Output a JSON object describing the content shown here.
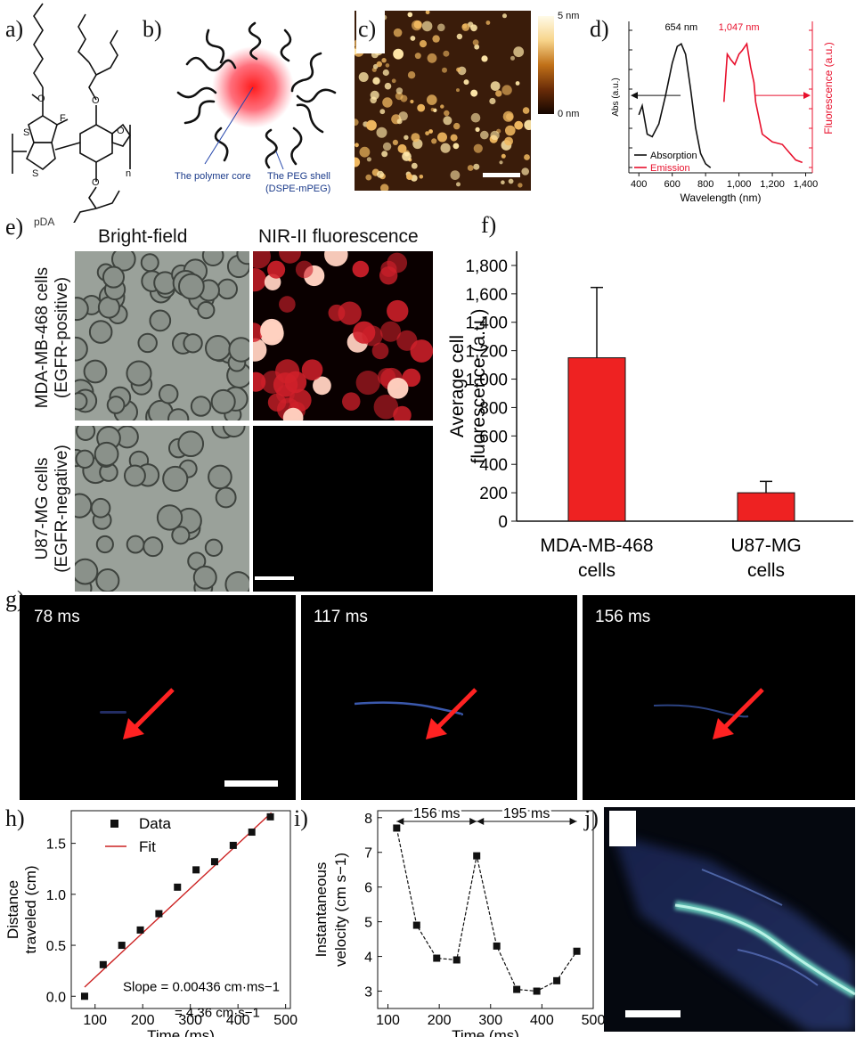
{
  "panels": {
    "a": {
      "label": "a)",
      "molecule_name": "pDA",
      "atoms": {
        "O": "O",
        "S": "S",
        "F": "F",
        "n": "n"
      }
    },
    "b": {
      "label": "b)",
      "core_label": "The polymer core",
      "shell_label_1": "The PEG shell",
      "shell_label_2": "(DSPE-mPEG)"
    },
    "c": {
      "label": "c)",
      "colorbar_max": "5 nm",
      "colorbar_min": "0 nm"
    },
    "d": {
      "label": "d)"
    },
    "e": {
      "label": "e)",
      "col1": "Bright-field",
      "col2": "NIR-II fluorescence",
      "row1_a": "MDA-MB-468 cells",
      "row1_b": "(EGFR-positive)",
      "row2_a": "U87-MG cells",
      "row2_b": "(EGFR-negative)"
    },
    "f": {
      "label": "f)"
    },
    "g": {
      "label": "g)",
      "frames": [
        "78 ms",
        "117 ms",
        "156 ms"
      ]
    },
    "h": {
      "label": "h)"
    },
    "i": {
      "label": "i)",
      "interval_1": "156 ms",
      "interval_2": "195 ms"
    },
    "j": {
      "label": "j)"
    }
  },
  "colors": {
    "absorption": "#111111",
    "emission": "#e8112d",
    "bar": "#ee2222",
    "fit": "#cc2222",
    "vessel": "#4a6fd8"
  },
  "chart_data": [
    {
      "panel": "d",
      "type": "line",
      "xlabel": "Wavelength (nm)",
      "ylabel_left": "Abs (a.u.)",
      "ylabel_right": "Fluorescence (a.u.)",
      "x_ticks": [
        "400",
        "600",
        "800",
        "1,000",
        "1,200",
        "1,400"
      ],
      "xlim": [
        340,
        1440
      ],
      "annotations": {
        "abs_peak": "654 nm",
        "em_peak": "1,047 nm"
      },
      "legend": [
        "Absorption",
        "Emission"
      ],
      "series": [
        {
          "name": "Absorption",
          "x": [
            400,
            420,
            450,
            480,
            520,
            560,
            600,
            630,
            654,
            680,
            710,
            740,
            770,
            800,
            830
          ],
          "y": [
            0.45,
            0.52,
            0.3,
            0.28,
            0.38,
            0.6,
            0.85,
            0.98,
            1.0,
            0.92,
            0.65,
            0.35,
            0.15,
            0.07,
            0.04
          ]
        },
        {
          "name": "Emission",
          "x": [
            910,
            930,
            950,
            975,
            1000,
            1020,
            1047,
            1070,
            1090,
            1100,
            1140,
            1200,
            1260,
            1300,
            1340,
            1380
          ],
          "y": [
            0.55,
            0.92,
            0.88,
            0.84,
            0.92,
            0.95,
            1.0,
            0.82,
            0.7,
            0.55,
            0.3,
            0.24,
            0.22,
            0.16,
            0.1,
            0.08
          ]
        }
      ]
    },
    {
      "panel": "f",
      "type": "bar",
      "categories": [
        "MDA-MB-468 cells",
        "U87-MG cells"
      ],
      "category_lines": [
        [
          "MDA-MB-468",
          "cells"
        ],
        [
          "U87-MG",
          "cells"
        ]
      ],
      "values": [
        1150,
        200
      ],
      "errors": [
        495,
        80
      ],
      "ylabel_1": "Average cell",
      "ylabel_2": "fluorescence (a.u.)",
      "ylim": [
        0,
        1900
      ],
      "y_ticks": [
        0,
        200,
        400,
        600,
        800,
        1000,
        1200,
        1400,
        1600,
        1800
      ],
      "y_tick_labels": [
        "0",
        "200",
        "400",
        "600",
        "800",
        "1,000",
        "1,200",
        "1,400",
        "1,600",
        "1,800"
      ]
    },
    {
      "panel": "h",
      "type": "scatter",
      "xlabel": "Time (ms)",
      "ylabel_1": "Distance",
      "ylabel_2": "traveled (cm)",
      "xlim": [
        50,
        510
      ],
      "ylim": [
        -0.12,
        1.82
      ],
      "x_ticks": [
        "100",
        "200",
        "300",
        "400",
        "500"
      ],
      "y_ticks": [
        "0.0",
        "0.5",
        "1.0",
        "1.5"
      ],
      "legend": [
        "Data",
        "Fit"
      ],
      "annotation_1": "Slope = 0.00436 cm·ms−1",
      "annotation_2": "= 4.36 cm·s−1",
      "series": [
        {
          "name": "Data",
          "x": [
            78,
            117,
            156,
            195,
            234,
            273,
            312,
            351,
            390,
            429,
            468
          ],
          "y": [
            0.0,
            0.31,
            0.5,
            0.65,
            0.81,
            1.07,
            1.24,
            1.32,
            1.48,
            1.61,
            1.76
          ]
        },
        {
          "name": "Fit",
          "x": [
            78,
            470
          ],
          "y": [
            0.09,
            1.8
          ]
        }
      ]
    },
    {
      "panel": "i",
      "type": "line",
      "xlabel": "Time (ms)",
      "ylabel_1": "Instantaneous",
      "ylabel_2": "velocity (cm s−1)",
      "xlim": [
        80,
        500
      ],
      "ylim": [
        2.5,
        8.2
      ],
      "x_ticks": [
        "100",
        "200",
        "300",
        "400",
        "500"
      ],
      "y_ticks": [
        "3",
        "4",
        "5",
        "6",
        "7",
        "8"
      ],
      "series": [
        {
          "name": "",
          "x": [
            117,
            156,
            195,
            234,
            273,
            312,
            351,
            390,
            429,
            468
          ],
          "y": [
            7.7,
            4.9,
            3.95,
            3.9,
            6.9,
            4.3,
            3.05,
            3.0,
            3.3,
            4.15
          ]
        }
      ]
    }
  ]
}
